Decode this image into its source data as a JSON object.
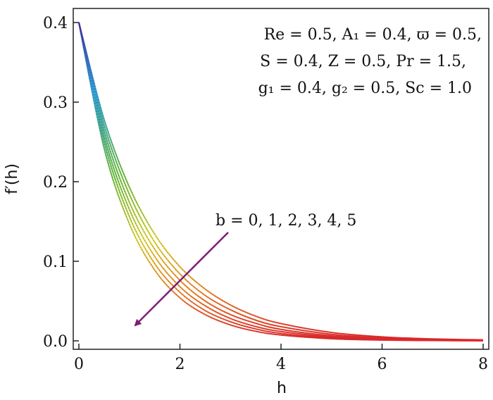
{
  "chart_data": {
    "type": "line",
    "xlabel": "h",
    "ylabel": "f′(h)",
    "xlim": [
      0,
      8
    ],
    "ylim": [
      0,
      0.4
    ],
    "x_ticks": [
      "0",
      "2",
      "4",
      "6",
      "8"
    ],
    "y_ticks": [
      "0.0",
      "0.1",
      "0.2",
      "0.3",
      "0.4"
    ],
    "grid": false,
    "parameter_lines": [
      "Re = 0.5, A₁ = 0.4,  ϖ = 0.5,",
      "S = 0.4, Z = 0.5, Pr = 1.5,",
      "g₁ = 0.4, g₂ = 0.5,  Sc = 1.0"
    ],
    "arrow_annotation": "b = 0, 1, 2, 3, 4, 5",
    "colors": {
      "arrow": "#7b1f74",
      "gradient_top": "#3a2fa0",
      "gradient_mid_blue": "#35a6d8",
      "gradient_green": "#6cbf3a",
      "gradient_yellow": "#e0d63a",
      "gradient_orange": "#f08a2a",
      "gradient_bottom": "#e3262c"
    },
    "series": [
      {
        "param": "b = 0",
        "x": [
          0,
          0.5,
          1,
          1.5,
          2,
          2.5,
          3,
          3.5,
          4,
          5,
          6,
          7,
          8
        ],
        "y": [
          0.4,
          0.242,
          0.147,
          0.089,
          0.054,
          0.033,
          0.02,
          0.012,
          0.0073,
          0.0027,
          0.001,
          0.0004,
          0.0001
        ]
      },
      {
        "param": "b = 1",
        "x": [
          0,
          0.5,
          1,
          1.5,
          2,
          2.5,
          3,
          3.5,
          4,
          5,
          6,
          7,
          8
        ],
        "y": [
          0.4,
          0.25,
          0.156,
          0.097,
          0.061,
          0.038,
          0.024,
          0.015,
          0.0093,
          0.0036,
          0.0014,
          0.0006,
          0.0002
        ]
      },
      {
        "param": "b = 2",
        "x": [
          0,
          0.5,
          1,
          1.5,
          2,
          2.5,
          3,
          3.5,
          4,
          5,
          6,
          7,
          8
        ],
        "y": [
          0.4,
          0.257,
          0.165,
          0.106,
          0.068,
          0.044,
          0.028,
          0.018,
          0.0117,
          0.0048,
          0.002,
          0.0008,
          0.0003
        ]
      },
      {
        "param": "b = 3",
        "x": [
          0,
          0.5,
          1,
          1.5,
          2,
          2.5,
          3,
          3.5,
          4,
          5,
          6,
          7,
          8
        ],
        "y": [
          0.4,
          0.264,
          0.174,
          0.115,
          0.076,
          0.05,
          0.033,
          0.022,
          0.0144,
          0.0063,
          0.0027,
          0.0012,
          0.0005
        ]
      },
      {
        "param": "b = 4",
        "x": [
          0,
          0.5,
          1,
          1.5,
          2,
          2.5,
          3,
          3.5,
          4,
          5,
          6,
          7,
          8
        ],
        "y": [
          0.4,
          0.271,
          0.184,
          0.124,
          0.084,
          0.057,
          0.039,
          0.026,
          0.0178,
          0.0082,
          0.0037,
          0.0017,
          0.0008
        ]
      },
      {
        "param": "b = 5",
        "x": [
          0,
          0.5,
          1,
          1.5,
          2,
          2.5,
          3,
          3.5,
          4,
          5,
          6,
          7,
          8
        ],
        "y": [
          0.4,
          0.278,
          0.193,
          0.134,
          0.093,
          0.065,
          0.045,
          0.031,
          0.0217,
          0.0105,
          0.005,
          0.0024,
          0.0012
        ]
      }
    ]
  }
}
